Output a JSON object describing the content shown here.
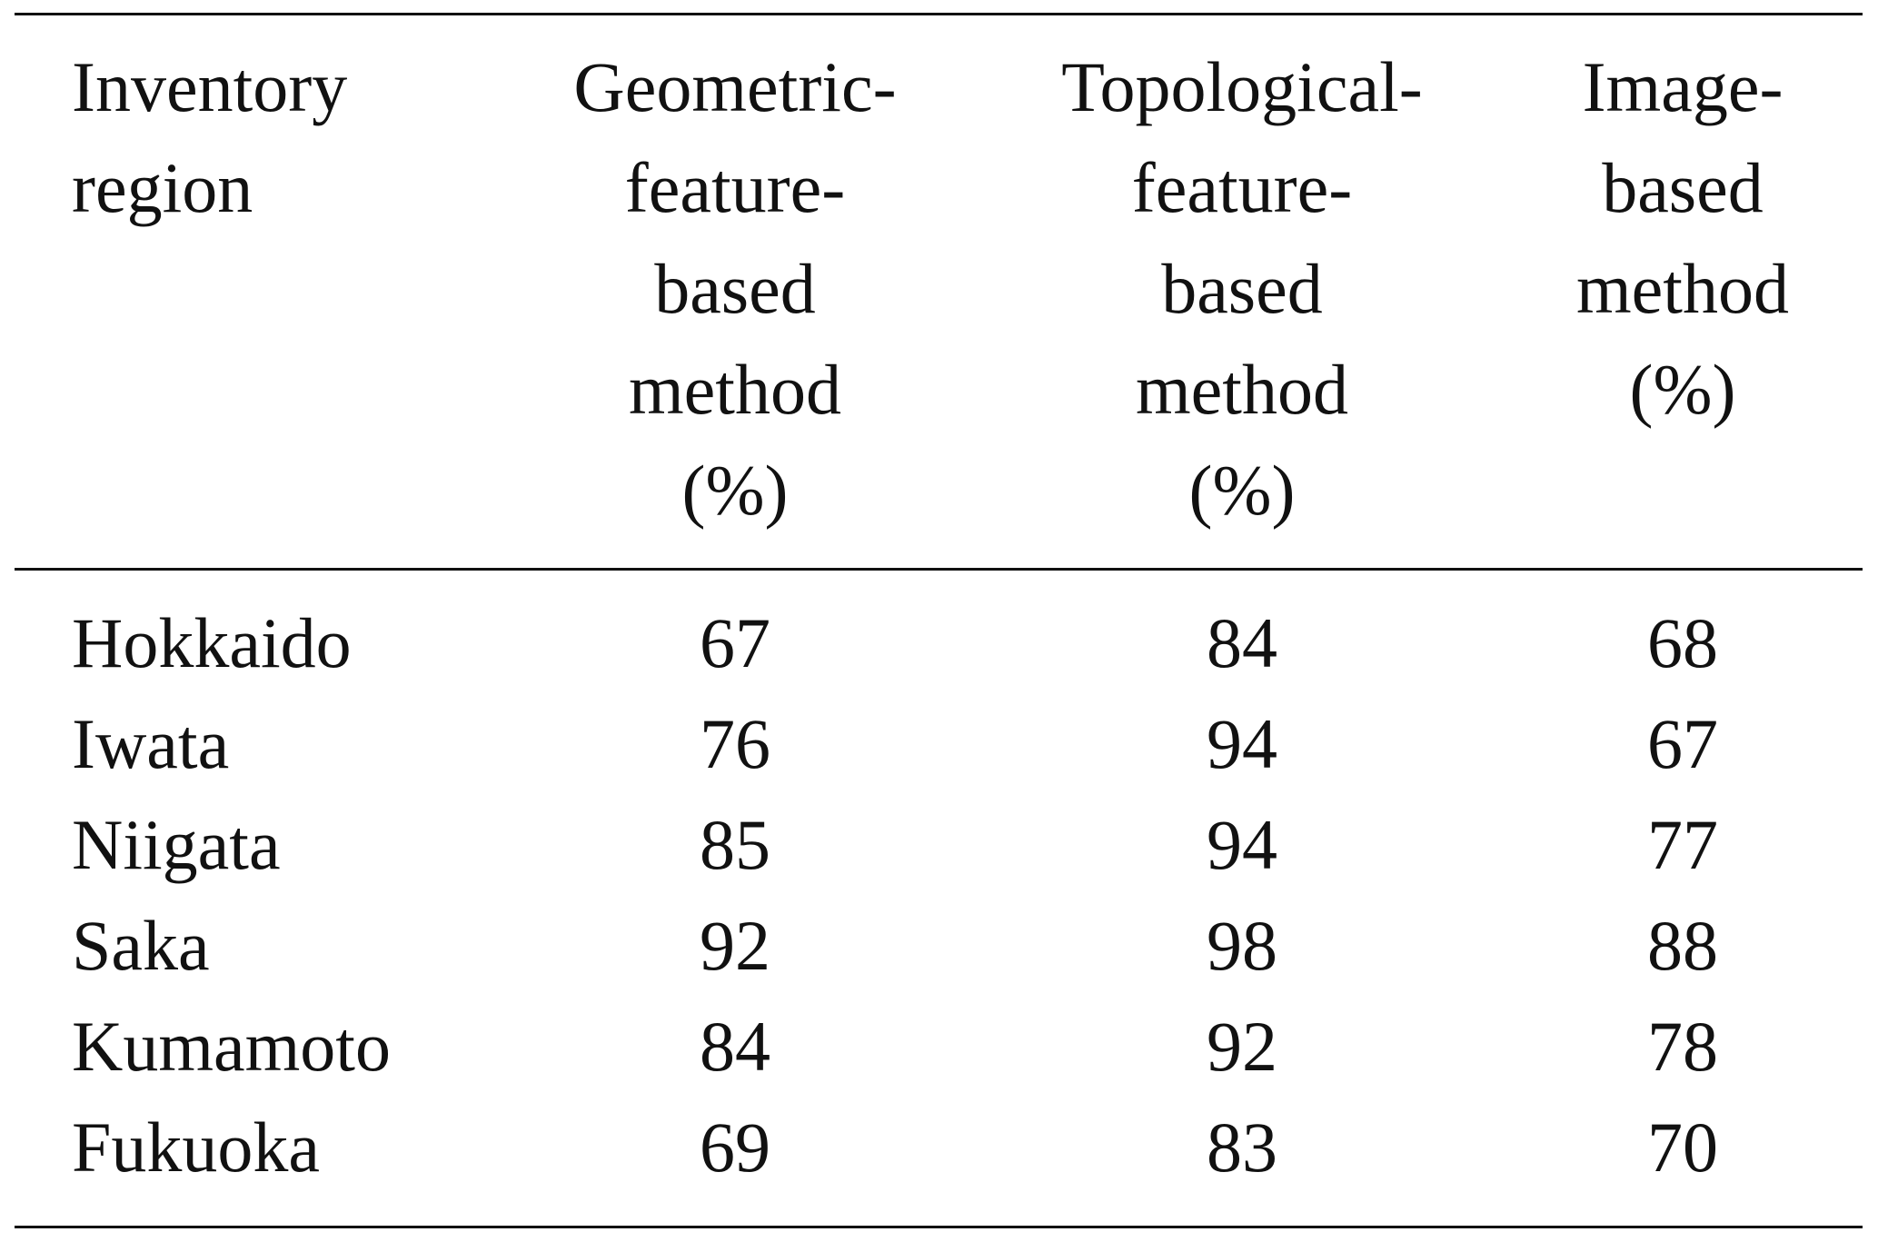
{
  "table": {
    "header": [
      [
        "Inventory",
        "region"
      ],
      [
        "Geometric-",
        "feature-",
        "based",
        "method",
        "(%)"
      ],
      [
        "Topological-",
        "feature-",
        "based",
        "method",
        "(%)"
      ],
      [
        "Image-",
        "based",
        "method",
        "(%)"
      ]
    ],
    "rows": [
      [
        "Hokkaido",
        67,
        84,
        68
      ],
      [
        "Iwata",
        76,
        94,
        67
      ],
      [
        "Niigata",
        85,
        94,
        77
      ],
      [
        "Saka",
        92,
        98,
        88
      ],
      [
        "Kumamoto",
        84,
        92,
        78
      ],
      [
        "Fukuoka",
        69,
        83,
        70
      ]
    ]
  }
}
